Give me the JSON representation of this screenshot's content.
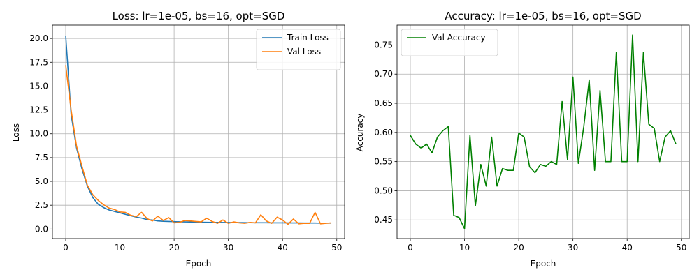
{
  "chart_data": [
    {
      "type": "line",
      "title": "Loss: lr=1e-05, bs=16, opt=SGD",
      "xlabel": "Epoch",
      "ylabel": "Loss",
      "xlim": [
        -2.45,
        51.45
      ],
      "ylim": [
        -1.0,
        21.4
      ],
      "xticks": [
        0,
        10,
        20,
        30,
        40,
        50
      ],
      "yticks": [
        0.0,
        2.5,
        5.0,
        7.5,
        10.0,
        12.5,
        15.0,
        17.5,
        20.0
      ],
      "ytick_decimals": 1,
      "grid": true,
      "legend_position": "top-right",
      "x": [
        0,
        1,
        2,
        3,
        4,
        5,
        6,
        7,
        8,
        9,
        10,
        11,
        12,
        13,
        14,
        15,
        16,
        17,
        18,
        19,
        20,
        21,
        22,
        23,
        24,
        25,
        26,
        27,
        28,
        29,
        30,
        31,
        32,
        33,
        34,
        35,
        36,
        37,
        38,
        39,
        40,
        41,
        42,
        43,
        44,
        45,
        46,
        47,
        48,
        49
      ],
      "series": [
        {
          "name": "Train Loss",
          "color": "#1f77b4",
          "values": [
            20.3,
            12.0,
            8.5,
            6.3,
            4.5,
            3.3,
            2.6,
            2.25,
            2.0,
            1.85,
            1.7,
            1.55,
            1.4,
            1.25,
            1.15,
            1.0,
            0.95,
            0.85,
            0.82,
            0.8,
            0.78,
            0.76,
            0.75,
            0.74,
            0.73,
            0.72,
            0.71,
            0.7,
            0.7,
            0.69,
            0.69,
            0.68,
            0.68,
            0.67,
            0.67,
            0.66,
            0.66,
            0.66,
            0.65,
            0.65,
            0.65,
            0.64,
            0.64,
            0.64,
            0.63,
            0.63,
            0.63,
            0.62,
            0.62,
            0.62
          ]
        },
        {
          "name": "Val Loss",
          "color": "#ff7f0e",
          "values": [
            17.2,
            12.5,
            8.7,
            6.6,
            4.6,
            3.6,
            3.0,
            2.55,
            2.2,
            2.05,
            1.8,
            1.75,
            1.45,
            1.3,
            1.75,
            1.1,
            0.85,
            1.35,
            0.9,
            1.2,
            0.65,
            0.7,
            0.9,
            0.85,
            0.8,
            0.75,
            1.15,
            0.8,
            0.6,
            0.95,
            0.6,
            0.75,
            0.65,
            0.6,
            0.7,
            0.65,
            1.5,
            0.85,
            0.6,
            1.25,
            0.95,
            0.5,
            1.05,
            0.55,
            0.6,
            0.6,
            1.75,
            0.55,
            0.6,
            0.65
          ]
        }
      ]
    },
    {
      "type": "line",
      "title": "Accuracy: lr=1e-05, bs=16, opt=SGD",
      "xlabel": "Epoch",
      "ylabel": "Accuracy",
      "xlim": [
        -2.45,
        51.45
      ],
      "ylim": [
        0.418,
        0.784
      ],
      "xticks": [
        0,
        10,
        20,
        30,
        40,
        50
      ],
      "yticks": [
        0.45,
        0.5,
        0.55,
        0.6,
        0.65,
        0.7,
        0.75
      ],
      "ytick_decimals": 2,
      "grid": true,
      "legend_position": "top-left",
      "x": [
        0,
        1,
        2,
        3,
        4,
        5,
        6,
        7,
        8,
        9,
        10,
        11,
        12,
        13,
        14,
        15,
        16,
        17,
        18,
        19,
        20,
        21,
        22,
        23,
        24,
        25,
        26,
        27,
        28,
        29,
        30,
        31,
        32,
        33,
        34,
        35,
        36,
        37,
        38,
        39,
        40,
        41,
        42,
        43,
        44,
        45,
        46,
        47,
        48,
        49
      ],
      "series": [
        {
          "name": "Val Accuracy",
          "color": "#008000",
          "values": [
            0.595,
            0.58,
            0.573,
            0.58,
            0.565,
            0.592,
            0.603,
            0.61,
            0.458,
            0.454,
            0.435,
            0.595,
            0.474,
            0.545,
            0.508,
            0.592,
            0.508,
            0.538,
            0.535,
            0.535,
            0.599,
            0.592,
            0.541,
            0.531,
            0.545,
            0.542,
            0.55,
            0.545,
            0.653,
            0.553,
            0.695,
            0.547,
            0.61,
            0.69,
            0.535,
            0.672,
            0.55,
            0.55,
            0.737,
            0.55,
            0.55,
            0.767,
            0.55,
            0.737,
            0.614,
            0.607,
            0.55,
            0.592,
            0.603,
            0.58
          ]
        }
      ]
    }
  ]
}
